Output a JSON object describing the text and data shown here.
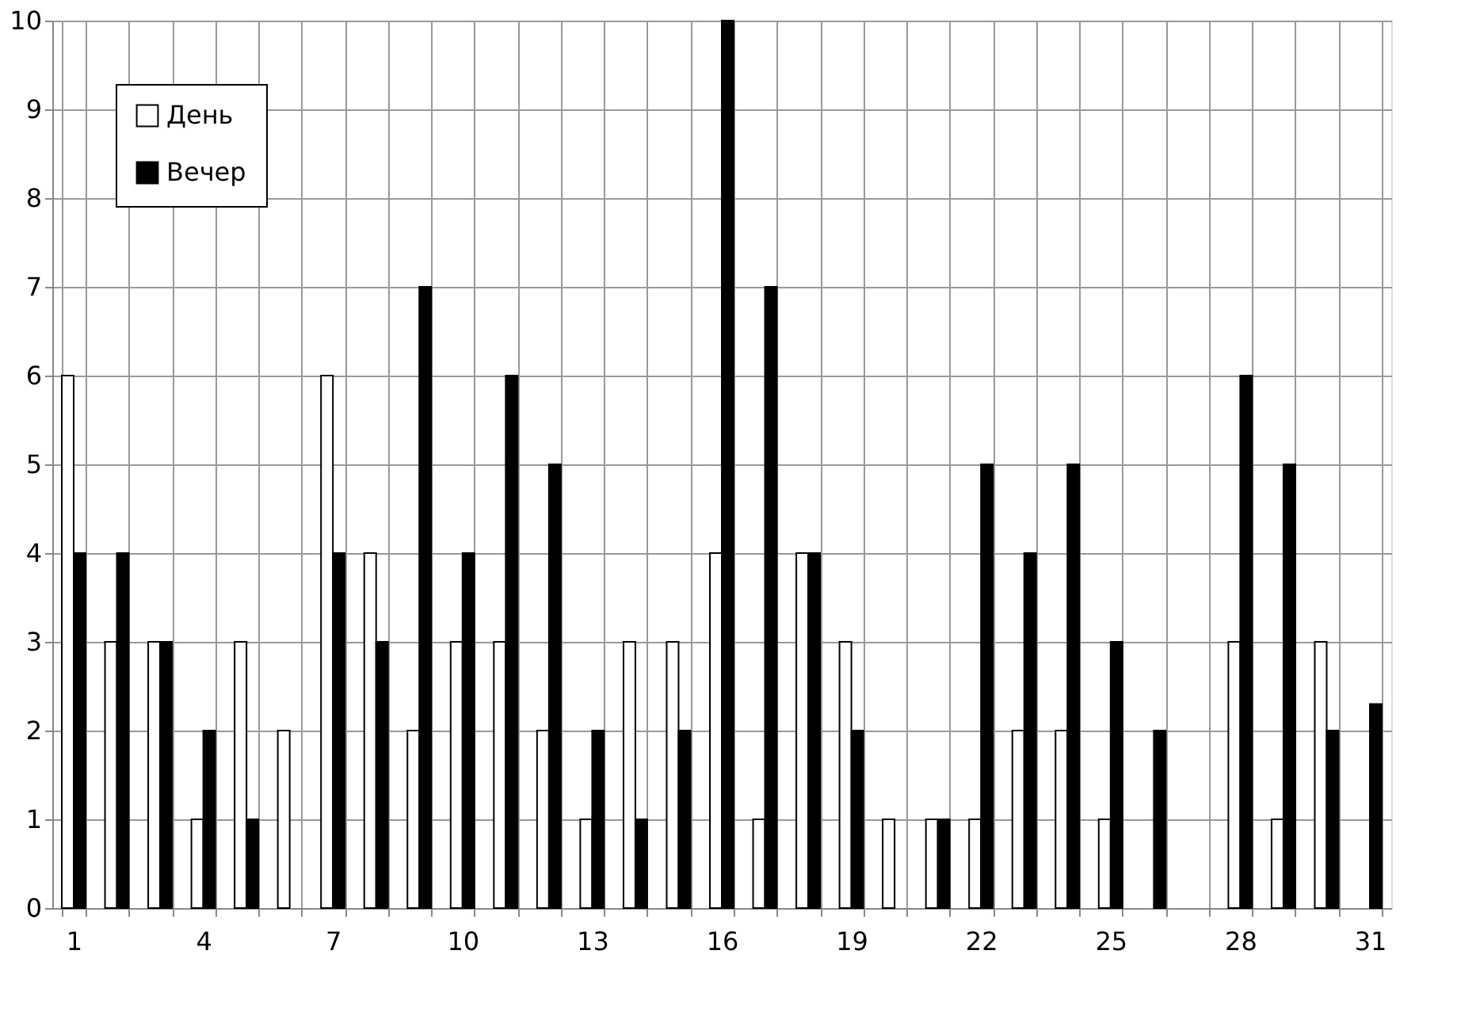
{
  "chart_data": {
    "type": "bar",
    "categories": [
      "1",
      null,
      null,
      "4",
      null,
      null,
      "7",
      null,
      null,
      "10",
      null,
      null,
      "13",
      null,
      null,
      "16",
      null,
      null,
      "19",
      null,
      null,
      "22",
      null,
      null,
      "25",
      null,
      null,
      "28",
      null,
      null,
      "31"
    ],
    "series": [
      {
        "name": "День",
        "color": "#ffffff",
        "values": [
          6,
          3,
          3,
          1,
          3,
          2,
          6,
          4,
          2,
          3,
          3,
          2,
          1,
          3,
          3,
          4,
          1,
          4,
          3,
          1,
          1,
          1,
          2,
          2,
          1,
          null,
          null,
          3,
          1,
          3,
          null
        ]
      },
      {
        "name": "Вечер",
        "color": "#000000",
        "values": [
          4,
          4,
          3,
          2,
          1,
          null,
          4,
          3,
          7,
          4,
          6,
          5,
          2,
          1,
          2,
          10,
          7,
          4,
          2,
          null,
          1,
          5,
          4,
          5,
          3,
          2,
          null,
          6,
          5,
          2,
          2.3
        ]
      }
    ],
    "ylim": [
      0,
      10
    ],
    "yticks": [
      0,
      1,
      2,
      3,
      4,
      5,
      6,
      7,
      8,
      9,
      10
    ],
    "grid": true,
    "legend": "top left"
  }
}
